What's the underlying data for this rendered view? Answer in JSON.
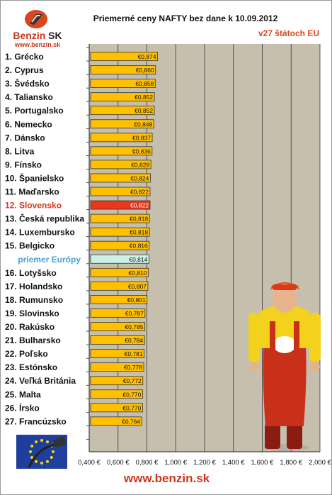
{
  "header": {
    "title": "Priemerné ceny NAFTY bez dane k 10.09.2012",
    "subtitle": "v27 štátoch EU",
    "logo_brand": "Benzin",
    "logo_brand_suffix": "SK",
    "logo_url": "www.benzin.sk"
  },
  "footer": {
    "url": "www.benzin.sk"
  },
  "colors": {
    "bar": "#ffc000",
    "highlight_bar": "#e8381a",
    "average_bar": "#ccf2e8",
    "plot_bg": "#c7bfae",
    "label_highlight": "#d9381e",
    "label_average": "#4aa0d8"
  },
  "chart_data": {
    "type": "bar",
    "orientation": "horizontal",
    "categories": [
      "1. Grécko",
      "2. Cyprus",
      "3. Švédsko",
      "4. Taliansko",
      "5. Portugalsko",
      "6. Nemecko",
      "7. Dánsko",
      "8. Litva",
      "9. Fínsko",
      "10. Španielsko",
      "11. Maďarsko",
      "12. Slovensko",
      "13. Česká republika",
      "14. Luxembursko",
      "15. Belgicko",
      "priemer Európy",
      "16. Lotyšsko",
      "17. Holandsko",
      "18. Rumunsko",
      "19. Slovinsko",
      "20. Rakúsko",
      "21. Bulharsko",
      "22. Poľsko",
      "23. Estónsko",
      "24. Veľká Británia",
      "25. Malta",
      "26. Írsko",
      "27. Francúzsko"
    ],
    "values": [
      0.874,
      0.86,
      0.858,
      0.852,
      0.852,
      0.848,
      0.837,
      0.836,
      0.828,
      0.824,
      0.822,
      0.822,
      0.818,
      0.818,
      0.816,
      0.814,
      0.81,
      0.807,
      0.801,
      0.787,
      0.785,
      0.784,
      0.781,
      0.778,
      0.772,
      0.77,
      0.77,
      0.764
    ],
    "value_labels": [
      "€0,874",
      "€0,860",
      "€0,858",
      "€0,852",
      "€0,852",
      "€0,848",
      "€0,837",
      "€0,836",
      "€0,828",
      "€0,824",
      "€0,822",
      "€0,822",
      "€0,818",
      "€0,818",
      "€0,816",
      "€0,814",
      "€0,810",
      "€0,807",
      "€0,801",
      "€0,787",
      "€0,785",
      "€0,784",
      "€0,781",
      "€0,778",
      "€0,772",
      "€0,770",
      "€0,770",
      "€0,764"
    ],
    "highlight_category": "12. Slovensko",
    "average_category": "priemer Európy",
    "xlim": [
      0.4,
      2.0
    ],
    "x_ticks": [
      0.4,
      0.6,
      0.8,
      1.0,
      1.2,
      1.4,
      1.6,
      1.8,
      2.0
    ],
    "x_tick_labels": [
      "0,400 €",
      "0,600 €",
      "0,800 €",
      "1,000 €",
      "1,200 €",
      "1,400 €",
      "1,600 €",
      "1,800 €",
      "2,000 €"
    ],
    "grid": true
  }
}
